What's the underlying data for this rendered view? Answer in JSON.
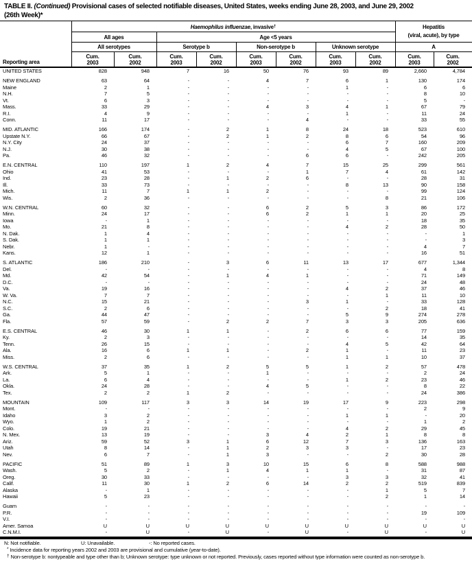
{
  "title": {
    "t1": "TABLE II.",
    "t2": "(Continued)",
    "t3": "Provisional cases of selected notifiable diseases, United States, weeks ending June 28, 2003, and June 29, 2002",
    "line2": "(26th Week)*"
  },
  "header": {
    "reporting_area": "Reporting area",
    "disease_italic": "Haemophilus influenzae",
    "disease_rest": ", invasive",
    "disease_sup": "†",
    "hep_line1": "Hepatitis",
    "hep_line2": "(viral, acute), by type",
    "all_ages": "All ages",
    "age_lt5": "Age <5 years",
    "all_serotypes": "All serotypes",
    "serotype_b": "Serotype b",
    "non_serotype_b": "Non-serotype b",
    "unknown_serotype": "Unknown serotype",
    "type_a": "A",
    "cum": "Cum.",
    "years": [
      "2003",
      "2002"
    ]
  },
  "sections": [
    {
      "rows": [
        {
          "area": "UNITED STATES",
          "values": [
            "828",
            "948",
            "7",
            "16",
            "50",
            "76",
            "93",
            "89",
            "2,660",
            "4,784"
          ]
        }
      ]
    },
    {
      "rows": [
        {
          "area": "NEW ENGLAND",
          "values": [
            "63",
            "64",
            "-",
            "-",
            "4",
            "7",
            "6",
            "1",
            "130",
            "174"
          ]
        },
        {
          "area": "Maine",
          "values": [
            "2",
            "1",
            "-",
            "-",
            "-",
            "-",
            "1",
            "-",
            "6",
            "6"
          ]
        },
        {
          "area": "N.H.",
          "values": [
            "7",
            "5",
            "-",
            "-",
            "-",
            "-",
            "-",
            "-",
            "8",
            "10"
          ]
        },
        {
          "area": "Vt.",
          "values": [
            "6",
            "3",
            "-",
            "-",
            "-",
            "-",
            "-",
            "-",
            "5",
            "-"
          ]
        },
        {
          "area": "Mass.",
          "values": [
            "33",
            "29",
            "-",
            "-",
            "4",
            "3",
            "4",
            "1",
            "67",
            "79"
          ]
        },
        {
          "area": "R.I.",
          "values": [
            "4",
            "9",
            "-",
            "-",
            "-",
            "-",
            "1",
            "-",
            "11",
            "24"
          ]
        },
        {
          "area": "Conn.",
          "values": [
            "11",
            "17",
            "-",
            "-",
            "-",
            "4",
            "-",
            "-",
            "33",
            "55"
          ]
        }
      ]
    },
    {
      "rows": [
        {
          "area": "MID. ATLANTIC",
          "values": [
            "166",
            "174",
            "-",
            "2",
            "1",
            "8",
            "24",
            "18",
            "523",
            "610"
          ]
        },
        {
          "area": "Upstate N.Y.",
          "values": [
            "66",
            "67",
            "-",
            "2",
            "1",
            "2",
            "8",
            "6",
            "54",
            "96"
          ]
        },
        {
          "area": "N.Y. City",
          "values": [
            "24",
            "37",
            "-",
            "-",
            "-",
            "-",
            "6",
            "7",
            "160",
            "209"
          ]
        },
        {
          "area": "N.J.",
          "values": [
            "30",
            "38",
            "-",
            "-",
            "-",
            "-",
            "4",
            "5",
            "67",
            "100"
          ]
        },
        {
          "area": "Pa.",
          "values": [
            "46",
            "32",
            "-",
            "-",
            "-",
            "6",
            "6",
            "-",
            "242",
            "205"
          ]
        }
      ]
    },
    {
      "rows": [
        {
          "area": "E.N. CENTRAL",
          "values": [
            "110",
            "197",
            "1",
            "2",
            "4",
            "7",
            "15",
            "25",
            "299",
            "561"
          ]
        },
        {
          "area": "Ohio",
          "values": [
            "41",
            "53",
            "-",
            "-",
            "-",
            "1",
            "7",
            "4",
            "61",
            "142"
          ]
        },
        {
          "area": "Ind.",
          "values": [
            "23",
            "28",
            "-",
            "1",
            "2",
            "6",
            "-",
            "-",
            "28",
            "31"
          ]
        },
        {
          "area": "Ill.",
          "values": [
            "33",
            "73",
            "-",
            "-",
            "-",
            "-",
            "8",
            "13",
            "90",
            "158"
          ]
        },
        {
          "area": "Mich.",
          "values": [
            "11",
            "7",
            "1",
            "1",
            "2",
            "-",
            "-",
            "-",
            "99",
            "124"
          ]
        },
        {
          "area": "Wis.",
          "values": [
            "2",
            "36",
            "-",
            "-",
            "-",
            "-",
            "-",
            "8",
            "21",
            "106"
          ]
        }
      ]
    },
    {
      "rows": [
        {
          "area": "W.N. CENTRAL",
          "values": [
            "60",
            "32",
            "-",
            "-",
            "6",
            "2",
            "5",
            "3",
            "86",
            "172"
          ]
        },
        {
          "area": "Minn.",
          "values": [
            "24",
            "17",
            "-",
            "-",
            "6",
            "2",
            "1",
            "1",
            "20",
            "25"
          ]
        },
        {
          "area": "Iowa",
          "values": [
            "-",
            "1",
            "-",
            "-",
            "-",
            "-",
            "-",
            "-",
            "18",
            "35"
          ]
        },
        {
          "area": "Mo.",
          "values": [
            "21",
            "8",
            "-",
            "-",
            "-",
            "-",
            "4",
            "2",
            "28",
            "50"
          ]
        },
        {
          "area": "N. Dak.",
          "values": [
            "1",
            "4",
            "-",
            "-",
            "-",
            "-",
            "-",
            "-",
            "-",
            "1"
          ]
        },
        {
          "area": "S. Dak.",
          "values": [
            "1",
            "1",
            "-",
            "-",
            "-",
            "-",
            "-",
            "-",
            "-",
            "3"
          ]
        },
        {
          "area": "Nebr.",
          "values": [
            "1",
            "-",
            "-",
            "-",
            "-",
            "-",
            "-",
            "-",
            "4",
            "7"
          ]
        },
        {
          "area": "Kans.",
          "values": [
            "12",
            "1",
            "-",
            "-",
            "-",
            "-",
            "-",
            "-",
            "16",
            "51"
          ]
        }
      ]
    },
    {
      "rows": [
        {
          "area": "S. ATLANTIC",
          "values": [
            "186",
            "210",
            "-",
            "3",
            "6",
            "11",
            "13",
            "17",
            "677",
            "1,344"
          ]
        },
        {
          "area": "Del.",
          "values": [
            "-",
            "-",
            "-",
            "-",
            "-",
            "-",
            "-",
            "-",
            "4",
            "8"
          ]
        },
        {
          "area": "Md.",
          "values": [
            "42",
            "54",
            "-",
            "1",
            "4",
            "1",
            "-",
            "-",
            "71",
            "149"
          ]
        },
        {
          "area": "D.C.",
          "values": [
            "-",
            "-",
            "-",
            "-",
            "-",
            "-",
            "-",
            "-",
            "24",
            "48"
          ]
        },
        {
          "area": "Va.",
          "values": [
            "19",
            "16",
            "-",
            "-",
            "-",
            "-",
            "4",
            "2",
            "37",
            "46"
          ]
        },
        {
          "area": "W. Va.",
          "values": [
            "7",
            "7",
            "-",
            "-",
            "-",
            "-",
            "-",
            "1",
            "11",
            "10"
          ]
        },
        {
          "area": "N.C.",
          "values": [
            "15",
            "21",
            "-",
            "-",
            "-",
            "3",
            "1",
            "-",
            "33",
            "128"
          ]
        },
        {
          "area": "S.C.",
          "values": [
            "2",
            "6",
            "-",
            "-",
            "-",
            "-",
            "-",
            "2",
            "18",
            "41"
          ]
        },
        {
          "area": "Ga.",
          "values": [
            "44",
            "47",
            "-",
            "-",
            "-",
            "-",
            "5",
            "9",
            "274",
            "278"
          ]
        },
        {
          "area": "Fla.",
          "values": [
            "57",
            "59",
            "-",
            "2",
            "2",
            "7",
            "3",
            "3",
            "205",
            "636"
          ]
        }
      ]
    },
    {
      "rows": [
        {
          "area": "E.S. CENTRAL",
          "values": [
            "46",
            "30",
            "1",
            "1",
            "-",
            "2",
            "6",
            "6",
            "77",
            "159"
          ]
        },
        {
          "area": "Ky.",
          "values": [
            "2",
            "3",
            "-",
            "-",
            "-",
            "-",
            "-",
            "-",
            "14",
            "35"
          ]
        },
        {
          "area": "Tenn.",
          "values": [
            "26",
            "15",
            "-",
            "-",
            "-",
            "-",
            "4",
            "5",
            "42",
            "64"
          ]
        },
        {
          "area": "Ala.",
          "values": [
            "16",
            "6",
            "1",
            "1",
            "-",
            "2",
            "1",
            "-",
            "11",
            "23"
          ]
        },
        {
          "area": "Miss.",
          "values": [
            "2",
            "6",
            "-",
            "-",
            "-",
            "-",
            "1",
            "1",
            "10",
            "37"
          ]
        }
      ]
    },
    {
      "rows": [
        {
          "area": "W.S. CENTRAL",
          "values": [
            "37",
            "35",
            "1",
            "2",
            "5",
            "5",
            "1",
            "2",
            "57",
            "478"
          ]
        },
        {
          "area": "Ark.",
          "values": [
            "5",
            "1",
            "-",
            "-",
            "1",
            "-",
            "-",
            "-",
            "2",
            "24"
          ]
        },
        {
          "area": "La.",
          "values": [
            "6",
            "4",
            "-",
            "-",
            "-",
            "-",
            "1",
            "2",
            "23",
            "46"
          ]
        },
        {
          "area": "Okla.",
          "values": [
            "24",
            "28",
            "-",
            "-",
            "4",
            "5",
            "-",
            "-",
            "8",
            "22"
          ]
        },
        {
          "area": "Tex.",
          "values": [
            "2",
            "2",
            "1",
            "2",
            "-",
            "-",
            "-",
            "-",
            "24",
            "386"
          ]
        }
      ]
    },
    {
      "rows": [
        {
          "area": "MOUNTAIN",
          "values": [
            "109",
            "117",
            "3",
            "3",
            "14",
            "19",
            "17",
            "9",
            "223",
            "298"
          ]
        },
        {
          "area": "Mont.",
          "values": [
            "-",
            "-",
            "-",
            "-",
            "-",
            "-",
            "-",
            "-",
            "2",
            "9"
          ]
        },
        {
          "area": "Idaho",
          "values": [
            "3",
            "2",
            "-",
            "-",
            "-",
            "-",
            "1",
            "1",
            "-",
            "20"
          ]
        },
        {
          "area": "Wyo.",
          "values": [
            "1",
            "2",
            "-",
            "-",
            "-",
            "-",
            "-",
            "-",
            "1",
            "2"
          ]
        },
        {
          "area": "Colo.",
          "values": [
            "19",
            "21",
            "-",
            "-",
            "-",
            "-",
            "4",
            "2",
            "29",
            "45"
          ]
        },
        {
          "area": "N. Mex.",
          "values": [
            "13",
            "19",
            "-",
            "-",
            "3",
            "4",
            "2",
            "1",
            "8",
            "8"
          ]
        },
        {
          "area": "Ariz.",
          "values": [
            "59",
            "52",
            "3",
            "1",
            "6",
            "12",
            "7",
            "3",
            "136",
            "163"
          ]
        },
        {
          "area": "Utah",
          "values": [
            "8",
            "14",
            "-",
            "1",
            "2",
            "3",
            "3",
            "-",
            "17",
            "23"
          ]
        },
        {
          "area": "Nev.",
          "values": [
            "6",
            "7",
            "-",
            "1",
            "3",
            "-",
            "-",
            "2",
            "30",
            "28"
          ]
        }
      ]
    },
    {
      "rows": [
        {
          "area": "PACIFIC",
          "values": [
            "51",
            "89",
            "1",
            "3",
            "10",
            "15",
            "6",
            "8",
            "588",
            "988"
          ]
        },
        {
          "area": "Wash.",
          "values": [
            "5",
            "2",
            "-",
            "1",
            "4",
            "1",
            "1",
            "-",
            "31",
            "87"
          ]
        },
        {
          "area": "Oreg.",
          "values": [
            "30",
            "33",
            "-",
            "-",
            "-",
            "-",
            "3",
            "3",
            "32",
            "41"
          ]
        },
        {
          "area": "Calif.",
          "values": [
            "11",
            "30",
            "1",
            "2",
            "6",
            "14",
            "2",
            "2",
            "519",
            "839"
          ]
        },
        {
          "area": "Alaska",
          "values": [
            "-",
            "1",
            "-",
            "-",
            "-",
            "-",
            "-",
            "1",
            "5",
            "7"
          ]
        },
        {
          "area": "Hawaii",
          "values": [
            "5",
            "23",
            "-",
            "-",
            "-",
            "-",
            "-",
            "2",
            "1",
            "14"
          ]
        }
      ]
    },
    {
      "rows": [
        {
          "area": "Guam",
          "values": [
            "-",
            "-",
            "-",
            "-",
            "-",
            "-",
            "-",
            "-",
            "-",
            "-"
          ]
        },
        {
          "area": "P.R.",
          "values": [
            "-",
            "-",
            "-",
            "-",
            "-",
            "-",
            "-",
            "-",
            "19",
            "109"
          ]
        },
        {
          "area": "V.I.",
          "values": [
            "-",
            "-",
            "-",
            "-",
            "-",
            "-",
            "-",
            "-",
            "-",
            "-"
          ]
        },
        {
          "area": "Amer. Samoa",
          "values": [
            "U",
            "U",
            "U",
            "U",
            "U",
            "U",
            "U",
            "U",
            "U",
            "U"
          ]
        },
        {
          "area": "C.N.M.I.",
          "values": [
            "-",
            "U",
            "-",
            "U",
            "-",
            "U",
            "-",
            "U",
            "-",
            "U"
          ]
        }
      ]
    }
  ],
  "footnotes": {
    "key1": "N: Not notifiable.",
    "key2": "U: Unavailable.",
    "key3": "-: No reported cases.",
    "star_sym": "*",
    "star_text": "Incidence data for reporting years 2002 and 2003 are provisional and cumulative (year-to-date).",
    "dagger_sym": "†",
    "dagger_text": "Non-serotype b: nontypeable and type other than b; Unknown serotype: type unknown or not reported. Previously, cases reported without type information were counted as non-serotype b."
  }
}
